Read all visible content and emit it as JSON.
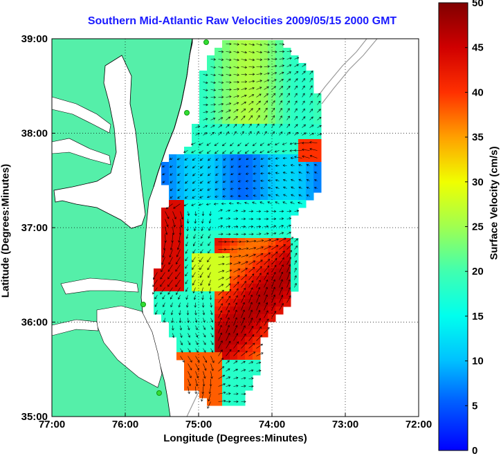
{
  "chart_data": {
    "type": "heatmap",
    "title": "Southern Mid-Atlantic Raw Velocities 2009/05/15 2000 GMT",
    "xlabel": "Longitude (Degrees:Minutes)",
    "ylabel": "Latitude (Degrees:Minutes)",
    "colorbar_label": "Surface Velocity (cm/s)",
    "xlim": [
      -77,
      -72
    ],
    "ylim": [
      35,
      39
    ],
    "x_ticks": [
      -77,
      -76,
      -75,
      -74,
      -73,
      -72
    ],
    "x_tick_labels": [
      "77:00",
      "76:00",
      "75:00",
      "74:00",
      "73:00",
      "72:00"
    ],
    "y_ticks": [
      35,
      36,
      37,
      38,
      39
    ],
    "y_tick_labels": [
      "35:00",
      "36:00",
      "37:00",
      "38:00",
      "39:00"
    ],
    "colorbar_range": [
      0,
      50
    ],
    "colorbar_ticks": [
      0,
      5,
      10,
      15,
      20,
      25,
      30,
      35,
      40,
      45,
      50
    ],
    "colorbar_tick_labels": [
      "0",
      "5",
      "10",
      "15",
      "20",
      "25",
      "30",
      "35",
      "40",
      "45",
      "50"
    ],
    "grid": true,
    "colors": {
      "land": "#55efa9",
      "coast_outline": "#000000",
      "title": "#1a1aff",
      "station_marker": "#33dd33",
      "isobath": "#9a9a9a"
    }
  }
}
